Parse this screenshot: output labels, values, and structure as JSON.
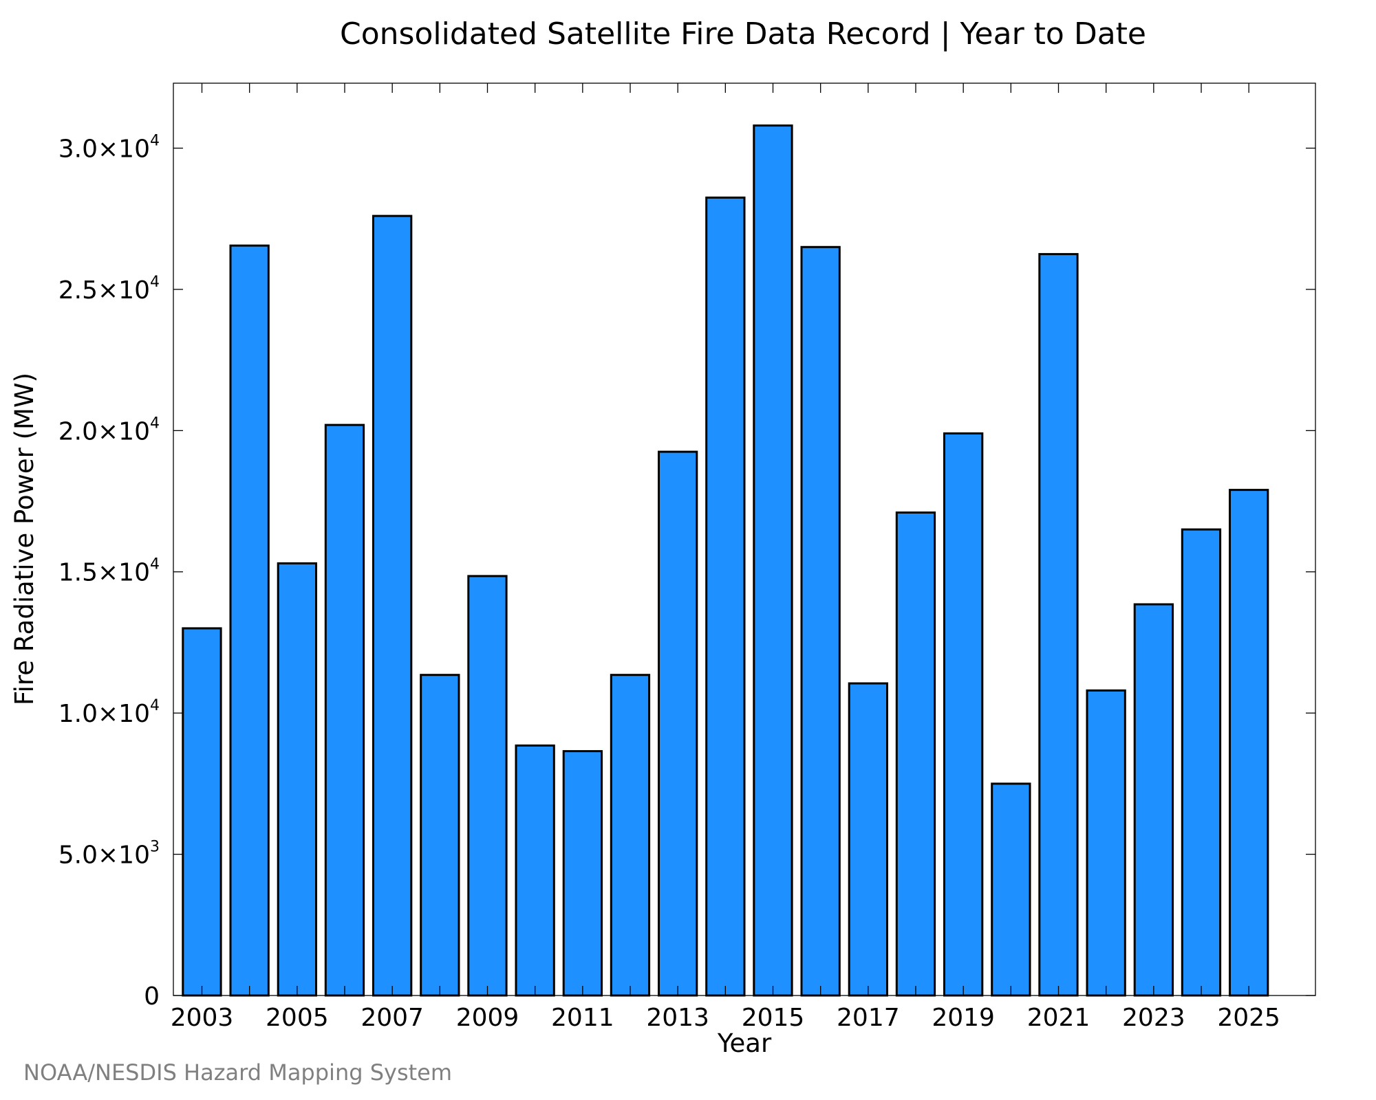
{
  "credit": "NOAA/NESDIS Hazard Mapping System",
  "colors": {
    "bar_fill": "#1E90FF",
    "bar_stroke": "#000000",
    "credit_text": "#808080"
  },
  "chart_data": {
    "type": "bar",
    "title": "Consolidated Satellite Fire Data Record | Year to Date",
    "xlabel": "Year",
    "ylabel": "Fire Radiative Power (MW)",
    "categories": [
      "2003",
      "2004",
      "2005",
      "2006",
      "2007",
      "2008",
      "2009",
      "2010",
      "2011",
      "2012",
      "2013",
      "2014",
      "2015",
      "2016",
      "2017",
      "2018",
      "2019",
      "2020",
      "2021",
      "2022",
      "2023",
      "2024",
      "2025"
    ],
    "values": [
      13000,
      26550,
      15300,
      20200,
      27600,
      11350,
      14850,
      8850,
      8650,
      11350,
      19250,
      28250,
      30800,
      26500,
      11050,
      17100,
      19900,
      7500,
      26250,
      10800,
      13850,
      16500,
      17900
    ],
    "ylim": [
      0,
      32300
    ],
    "xlim": [
      2002.4,
      2026.4
    ],
    "xticks": [
      {
        "value": 2003,
        "label": "2003"
      },
      {
        "value": 2005,
        "label": "2005"
      },
      {
        "value": 2007,
        "label": "2007"
      },
      {
        "value": 2009,
        "label": "2009"
      },
      {
        "value": 2011,
        "label": "2011"
      },
      {
        "value": 2013,
        "label": "2013"
      },
      {
        "value": 2015,
        "label": "2015"
      },
      {
        "value": 2017,
        "label": "2017"
      },
      {
        "value": 2019,
        "label": "2019"
      },
      {
        "value": 2021,
        "label": "2021"
      },
      {
        "value": 2023,
        "label": "2023"
      },
      {
        "value": 2025,
        "label": "2025"
      }
    ],
    "yticks": [
      {
        "value": 0,
        "mantissa": "0",
        "exp": ""
      },
      {
        "value": 5000,
        "mantissa": "5.0×10",
        "exp": "3"
      },
      {
        "value": 10000,
        "mantissa": "1.0×10",
        "exp": "4"
      },
      {
        "value": 15000,
        "mantissa": "1.5×10",
        "exp": "4"
      },
      {
        "value": 20000,
        "mantissa": "2.0×10",
        "exp": "4"
      },
      {
        "value": 25000,
        "mantissa": "2.5×10",
        "exp": "4"
      },
      {
        "value": 30000,
        "mantissa": "3.0×10",
        "exp": "4"
      }
    ],
    "grid": false,
    "legend": "none"
  }
}
